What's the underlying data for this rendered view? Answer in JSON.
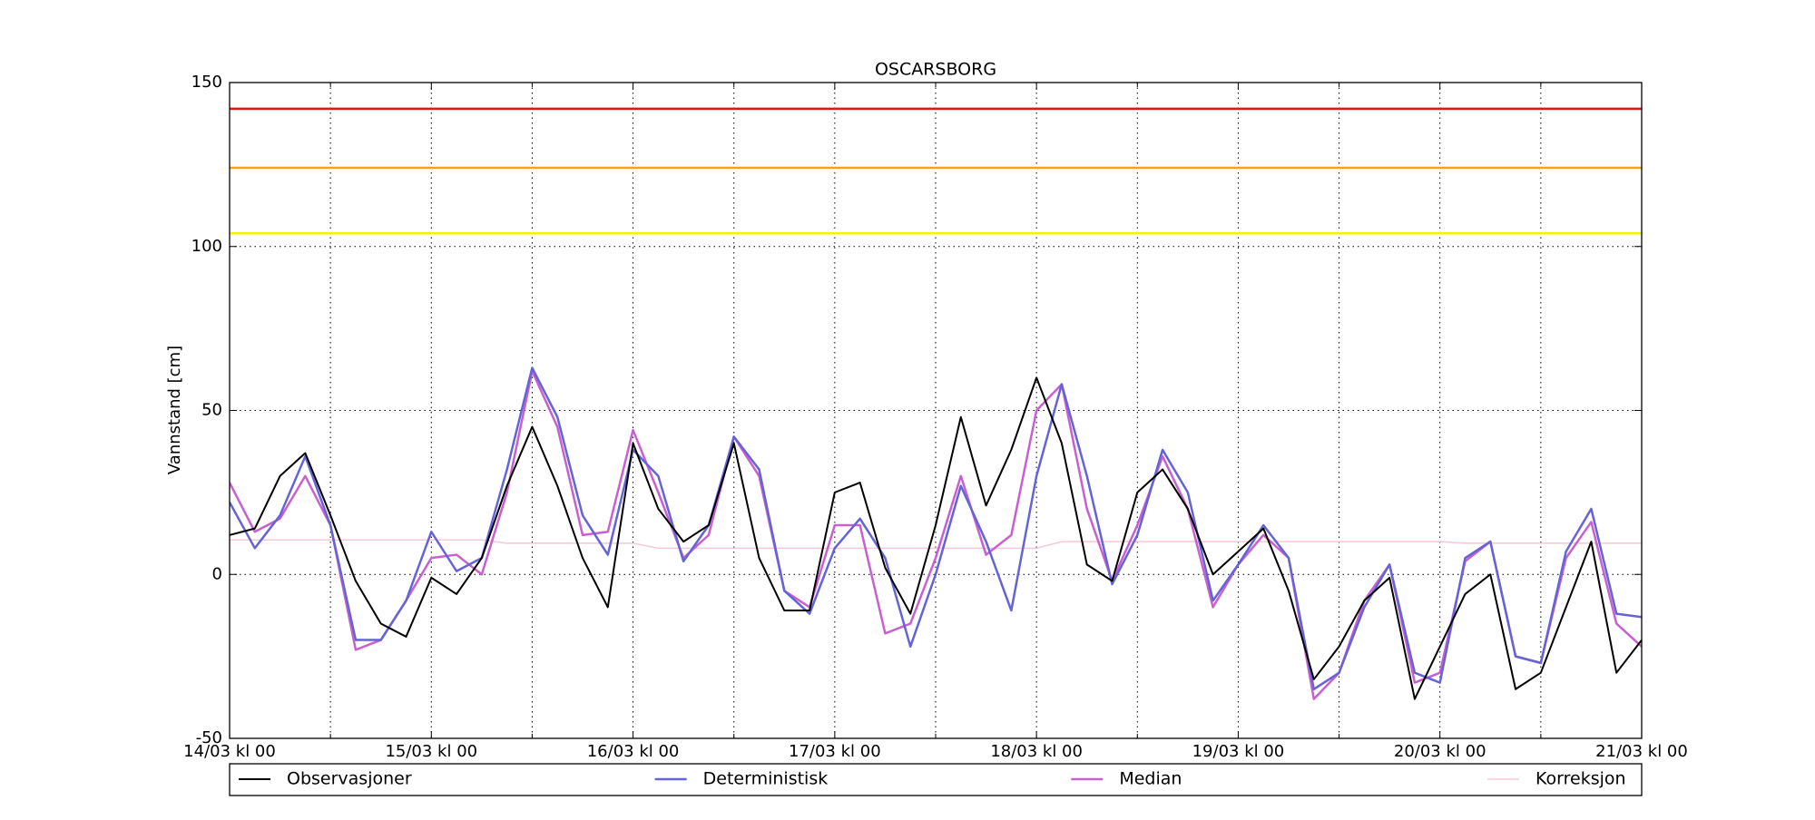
{
  "chart_data": {
    "type": "line",
    "title": "OSCARSBORG",
    "ylabel": "Vannstand [cm]",
    "x": [
      0,
      3,
      6,
      9,
      12,
      15,
      18,
      21,
      24,
      27,
      30,
      33,
      36,
      39,
      42,
      45,
      48,
      51,
      54,
      57,
      60,
      63,
      66,
      69,
      72,
      75,
      78,
      81,
      84,
      87,
      90,
      93,
      96,
      99,
      102,
      105,
      108,
      111,
      114,
      117,
      120,
      123,
      126,
      129,
      132,
      135,
      138,
      141,
      144,
      147,
      150,
      153,
      156,
      159,
      162,
      165,
      168
    ],
    "xlim": [
      0,
      168
    ],
    "xticks": [
      {
        "value": 0,
        "label": "14/03 kl 00"
      },
      {
        "value": 24,
        "label": "15/03 kl 00"
      },
      {
        "value": 48,
        "label": "16/03 kl 00"
      },
      {
        "value": 72,
        "label": "17/03 kl 00"
      },
      {
        "value": 96,
        "label": "18/03 kl 00"
      },
      {
        "value": 120,
        "label": "19/03 kl 00"
      },
      {
        "value": 144,
        "label": "20/03 kl 00"
      },
      {
        "value": 168,
        "label": "21/03 kl 00"
      }
    ],
    "xminorticks": [
      12,
      36,
      60,
      84,
      108,
      132,
      156
    ],
    "ylim": [
      -50,
      150
    ],
    "yticks": [
      -50,
      0,
      50,
      100,
      150
    ],
    "grid": true,
    "legend": "below",
    "thresholds": [
      {
        "value": 142,
        "color": "#ee1111"
      },
      {
        "value": 124,
        "color": "#ffa010"
      },
      {
        "value": 104,
        "color": "#f4f400"
      }
    ],
    "series": [
      {
        "name": "Observasjoner",
        "color": "#000000",
        "width": 2,
        "values": [
          12,
          14,
          30,
          37,
          18,
          -2,
          -15,
          -19,
          -1,
          -6,
          5,
          27,
          45,
          27,
          5,
          -10,
          40,
          20,
          10,
          15,
          40,
          5,
          -11,
          -11,
          25,
          28,
          2,
          -12,
          15,
          48,
          21,
          38,
          60,
          40,
          3,
          -2,
          25,
          32,
          20,
          0,
          7,
          14,
          -5,
          -32,
          -22,
          -8,
          -1,
          -38,
          -22,
          -6,
          0,
          -35,
          -30,
          -10,
          10,
          -30,
          -20
        ]
      },
      {
        "name": "Deterministisk",
        "color": "#6464d6",
        "width": 2.5,
        "values": [
          22,
          8,
          18,
          36,
          15,
          -20,
          -20,
          -8,
          13,
          1,
          5,
          32,
          63,
          48,
          18,
          6,
          38,
          30,
          4,
          15,
          42,
          32,
          -5,
          -12,
          8,
          17,
          5,
          -22,
          0,
          27,
          10,
          -11,
          30,
          58,
          30,
          -3,
          12,
          38,
          25,
          -8,
          3,
          15,
          5,
          -35,
          -30,
          -10,
          3,
          -30,
          -33,
          5,
          10,
          -25,
          -27,
          7,
          20,
          -12,
          -13
        ]
      },
      {
        "name": "Median",
        "color": "#c860d0",
        "width": 2.5,
        "values": [
          28,
          13,
          17,
          30,
          15,
          -23,
          -20,
          -8,
          5,
          6,
          0,
          25,
          62,
          45,
          12,
          13,
          44,
          25,
          5,
          12,
          42,
          30,
          -5,
          -10,
          15,
          15,
          -18,
          -15,
          5,
          30,
          6,
          12,
          50,
          58,
          20,
          -2,
          15,
          36,
          20,
          -10,
          3,
          12,
          5,
          -38,
          -30,
          -8,
          3,
          -33,
          -30,
          4,
          10,
          -25,
          -27,
          5,
          16,
          -15,
          -22
        ]
      },
      {
        "name": "Korreksjon",
        "color": "#f6c8d8",
        "width": 1.5,
        "values": [
          10.5,
          10.5,
          10.5,
          10.5,
          10.5,
          10.5,
          10.5,
          10.5,
          10.5,
          10.5,
          10.5,
          9.5,
          9.5,
          9.5,
          9.5,
          9.5,
          9.5,
          8,
          8,
          8,
          8,
          8,
          8,
          8,
          8,
          8,
          8,
          8,
          8,
          8,
          8,
          8,
          8,
          10,
          10,
          10,
          10,
          10,
          10,
          10,
          10,
          10,
          10,
          10,
          10,
          10,
          10,
          10,
          10,
          9.5,
          9.5,
          9.5,
          9.5,
          9.5,
          9.5,
          9.5,
          9.5
        ]
      }
    ]
  }
}
